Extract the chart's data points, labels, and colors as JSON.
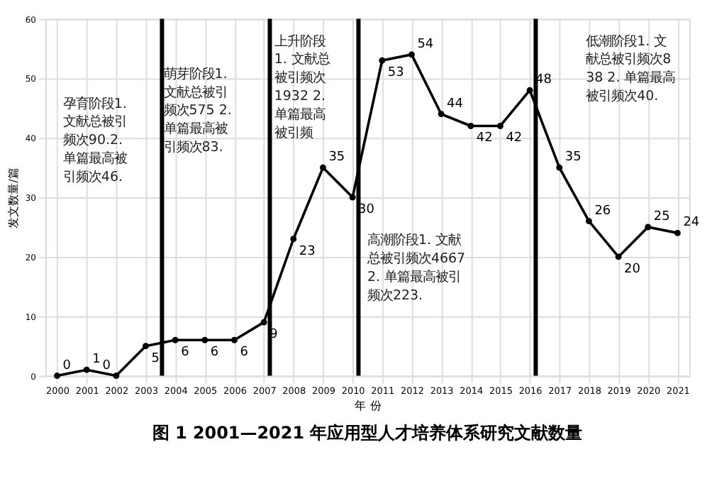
{
  "chart_data": {
    "type": "line",
    "title": "图 1   2001—2021 年应用型人才培养体系研究文献数量",
    "xlabel": "年 份",
    "ylabel": "发文数量/篇",
    "x": [
      2000,
      2001,
      2002,
      2003,
      2004,
      2005,
      2006,
      2007,
      2008,
      2009,
      2010,
      2011,
      2012,
      2013,
      2014,
      2015,
      2016,
      2017,
      2018,
      2019,
      2020,
      2021
    ],
    "series": [
      {
        "color": "#000000",
        "values": [
          0,
          1,
          0,
          5,
          6,
          6,
          6,
          9,
          23,
          35,
          30,
          53,
          54,
          44,
          42,
          42,
          48,
          35,
          26,
          20,
          25,
          24
        ]
      }
    ],
    "data_labels": true,
    "marker": "circle",
    "line_style": "solid",
    "grid": true,
    "xlim": [
      1999.6,
      2021.4
    ],
    "xticks": [
      2000,
      2001,
      2002,
      2003,
      2004,
      2005,
      2006,
      2007,
      2008,
      2009,
      2010,
      2011,
      2012,
      2013,
      2014,
      2015,
      2016,
      2017,
      2018,
      2019,
      2020,
      2021
    ],
    "ylim": [
      0,
      60
    ],
    "yticks": [
      0,
      10,
      20,
      30,
      40,
      50,
      60
    ],
    "ref_lines": [
      {
        "axis": "x",
        "value": 2003.55,
        "color": "#000000"
      },
      {
        "axis": "x",
        "value": 2007.2,
        "color": "#000000"
      },
      {
        "axis": "x",
        "value": 2010.2,
        "color": "#000000"
      },
      {
        "axis": "x",
        "value": 2016.2,
        "color": "#000000"
      }
    ],
    "annotations": [
      "孕育阶段1.文献总被引频次90.2. 单篇最高被引频次46.",
      "萌芽阶段1. 文献总被引频次575 2. 单篇最高被引频次83.",
      "上升阶段1. 文献总被引频次1932 2. 单篇最高被引频",
      "高潮阶段1. 文献总被引频次4667 2. 单篇最高被引频次223.",
      "低潮阶段1. 文献总被引频次838 2. 单篇最高被引频次40."
    ]
  }
}
